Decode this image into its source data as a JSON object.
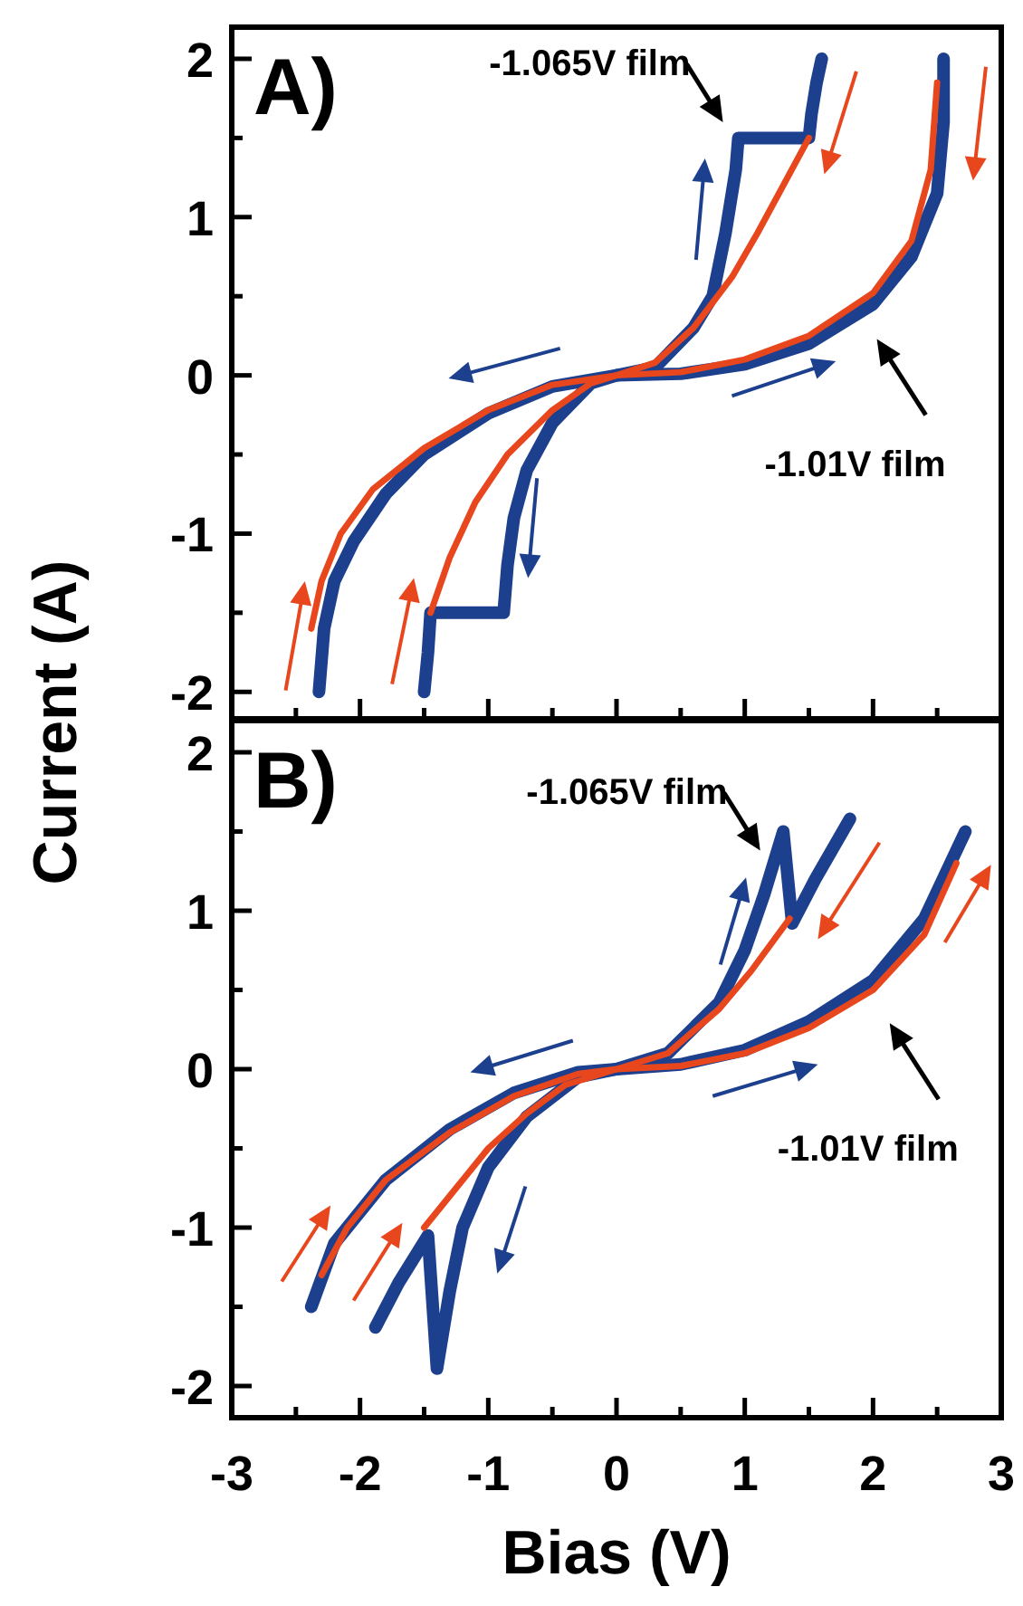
{
  "chart_data": [
    {
      "type": "line",
      "ylabel": "Current (A)",
      "xlim": [
        -3,
        3
      ],
      "ylim": [
        -2.17,
        2.2
      ],
      "xticks": [
        -3,
        {
          "value": -2.5,
          "label": null
        },
        -2,
        {
          "value": -1.5,
          "label": null
        },
        -1,
        {
          "value": -0.5,
          "label": null
        },
        0,
        {
          "value": 0.5,
          "label": null
        },
        1,
        {
          "value": 1.5,
          "label": null
        },
        2,
        {
          "value": 2.5,
          "label": null
        },
        3
      ],
      "yticks": [
        -2,
        {
          "value": -1.5,
          "label": null
        },
        -1,
        {
          "value": -0.5,
          "label": null
        },
        0,
        {
          "value": 0.5,
          "label": null
        },
        1,
        {
          "value": 1.5,
          "label": null
        },
        2
      ],
      "tick_labels": "y",
      "grid": false,
      "line_style": "solid",
      "annotations": [
        "A)",
        "-1.065V film",
        "-1.01V film"
      ],
      "series": [
        {
          "color": "#e8471e",
          "x": [
            -2.38,
            -2.3,
            -2.15,
            -1.9,
            -1.5,
            -1.0,
            -0.5,
            0,
            0.5,
            1.0,
            1.5,
            2.0,
            2.3,
            2.45,
            2.5
          ],
          "values": [
            -1.6,
            -1.3,
            -1.0,
            -0.72,
            -0.46,
            -0.22,
            -0.06,
            0,
            0.02,
            0.1,
            0.25,
            0.52,
            0.85,
            1.3,
            1.85
          ]
        },
        {
          "color": "#1c3f8e",
          "x": [
            -2.32,
            -2.28,
            -2.2,
            -2.05,
            -1.8,
            -1.5,
            -1.0,
            -0.5,
            0,
            0.5,
            1.0,
            1.5,
            2.0,
            2.3,
            2.5,
            2.55,
            2.55
          ],
          "values": [
            -2,
            -1.6,
            -1.3,
            -1.05,
            -0.75,
            -0.5,
            -0.24,
            -0.07,
            0,
            0.01,
            0.07,
            0.2,
            0.45,
            0.75,
            1.15,
            1.6,
            2
          ]
        },
        {
          "color": "#e8471e",
          "x": [
            -1.45,
            -1.3,
            -1.1,
            -0.85,
            -0.5,
            -0.2,
            0,
            0.3,
            0.6,
            0.9,
            1.1,
            1.3,
            1.5
          ],
          "values": [
            -1.5,
            -1.15,
            -0.8,
            -0.5,
            -0.22,
            -0.05,
            0,
            0.08,
            0.3,
            0.62,
            0.9,
            1.2,
            1.5
          ]
        },
        {
          "color": "#1c3f8e",
          "x": [
            -1.5,
            -1.47,
            -1.45,
            -0.88,
            -0.85,
            -0.8,
            -0.7,
            -0.5,
            -0.2,
            0,
            0.3,
            0.6,
            0.75,
            0.85,
            0.93,
            0.95,
            1.5,
            1.52,
            1.56,
            1.6
          ],
          "values": [
            -2,
            -1.75,
            -1.5,
            -1.5,
            -1.2,
            -0.9,
            -0.6,
            -0.3,
            -0.05,
            0,
            0.05,
            0.3,
            0.5,
            0.9,
            1.3,
            1.5,
            1.5,
            1.65,
            1.85,
            2
          ]
        }
      ]
    },
    {
      "type": "line",
      "xlabel": "Bias (V)",
      "xlim": [
        -3,
        3
      ],
      "ylim": [
        -2.2,
        2.2
      ],
      "xticks": [
        -3,
        {
          "value": -2.5,
          "label": null
        },
        -2,
        {
          "value": -1.5,
          "label": null
        },
        -1,
        {
          "value": -0.5,
          "label": null
        },
        0,
        {
          "value": 0.5,
          "label": null
        },
        1,
        {
          "value": 1.5,
          "label": null
        },
        2,
        {
          "value": 2.5,
          "label": null
        },
        3
      ],
      "yticks": [
        -2,
        {
          "value": -1.5,
          "label": null
        },
        -1,
        {
          "value": -0.5,
          "label": null
        },
        0,
        {
          "value": 0.5,
          "label": null
        },
        1,
        {
          "value": 1.5,
          "label": null
        },
        2
      ],
      "grid": false,
      "line_style": "solid",
      "annotations": [
        "B)",
        "-1.065V film",
        "-1.01V film"
      ],
      "series": [
        {
          "color": "#e8471e",
          "x": [
            -2.3,
            -2.1,
            -1.8,
            -1.3,
            -0.8,
            -0.3,
            0,
            0.5,
            1.0,
            1.5,
            2.0,
            2.4,
            2.65
          ],
          "values": [
            -1.3,
            -1.0,
            -0.7,
            -0.4,
            -0.17,
            -0.03,
            0,
            0.02,
            0.1,
            0.26,
            0.5,
            0.85,
            1.3
          ]
        },
        {
          "color": "#1c3f8e",
          "x": [
            -2.38,
            -2.2,
            -1.8,
            -1.3,
            -0.8,
            -0.3,
            0,
            0.5,
            1.0,
            1.5,
            2.0,
            2.4,
            2.72
          ],
          "values": [
            -1.5,
            -1.1,
            -0.7,
            -0.38,
            -0.15,
            -0.02,
            0,
            0.03,
            0.12,
            0.3,
            0.56,
            0.95,
            1.5
          ]
        },
        {
          "color": "#e8471e",
          "x": [
            -1.5,
            -1.25,
            -1.0,
            -0.7,
            -0.4,
            0,
            0.4,
            0.8,
            1.05,
            1.35
          ],
          "values": [
            -1.0,
            -0.75,
            -0.5,
            -0.28,
            -0.1,
            0,
            0.1,
            0.38,
            0.62,
            0.95
          ]
        },
        {
          "color": "#1c3f8e",
          "x": [
            -1.88,
            -1.7,
            -1.47,
            -1.4,
            -1.3,
            -1.2,
            -1.0,
            -0.7,
            -0.3,
            0,
            0.4,
            0.8,
            1.0,
            1.15,
            1.3,
            1.37,
            1.55,
            1.82
          ],
          "values": [
            -1.63,
            -1.35,
            -1.05,
            -1.89,
            -1.4,
            -1.0,
            -0.62,
            -0.3,
            -0.05,
            0,
            0.1,
            0.42,
            0.75,
            1.1,
            1.5,
            0.92,
            1.2,
            1.58
          ]
        }
      ]
    }
  ]
}
